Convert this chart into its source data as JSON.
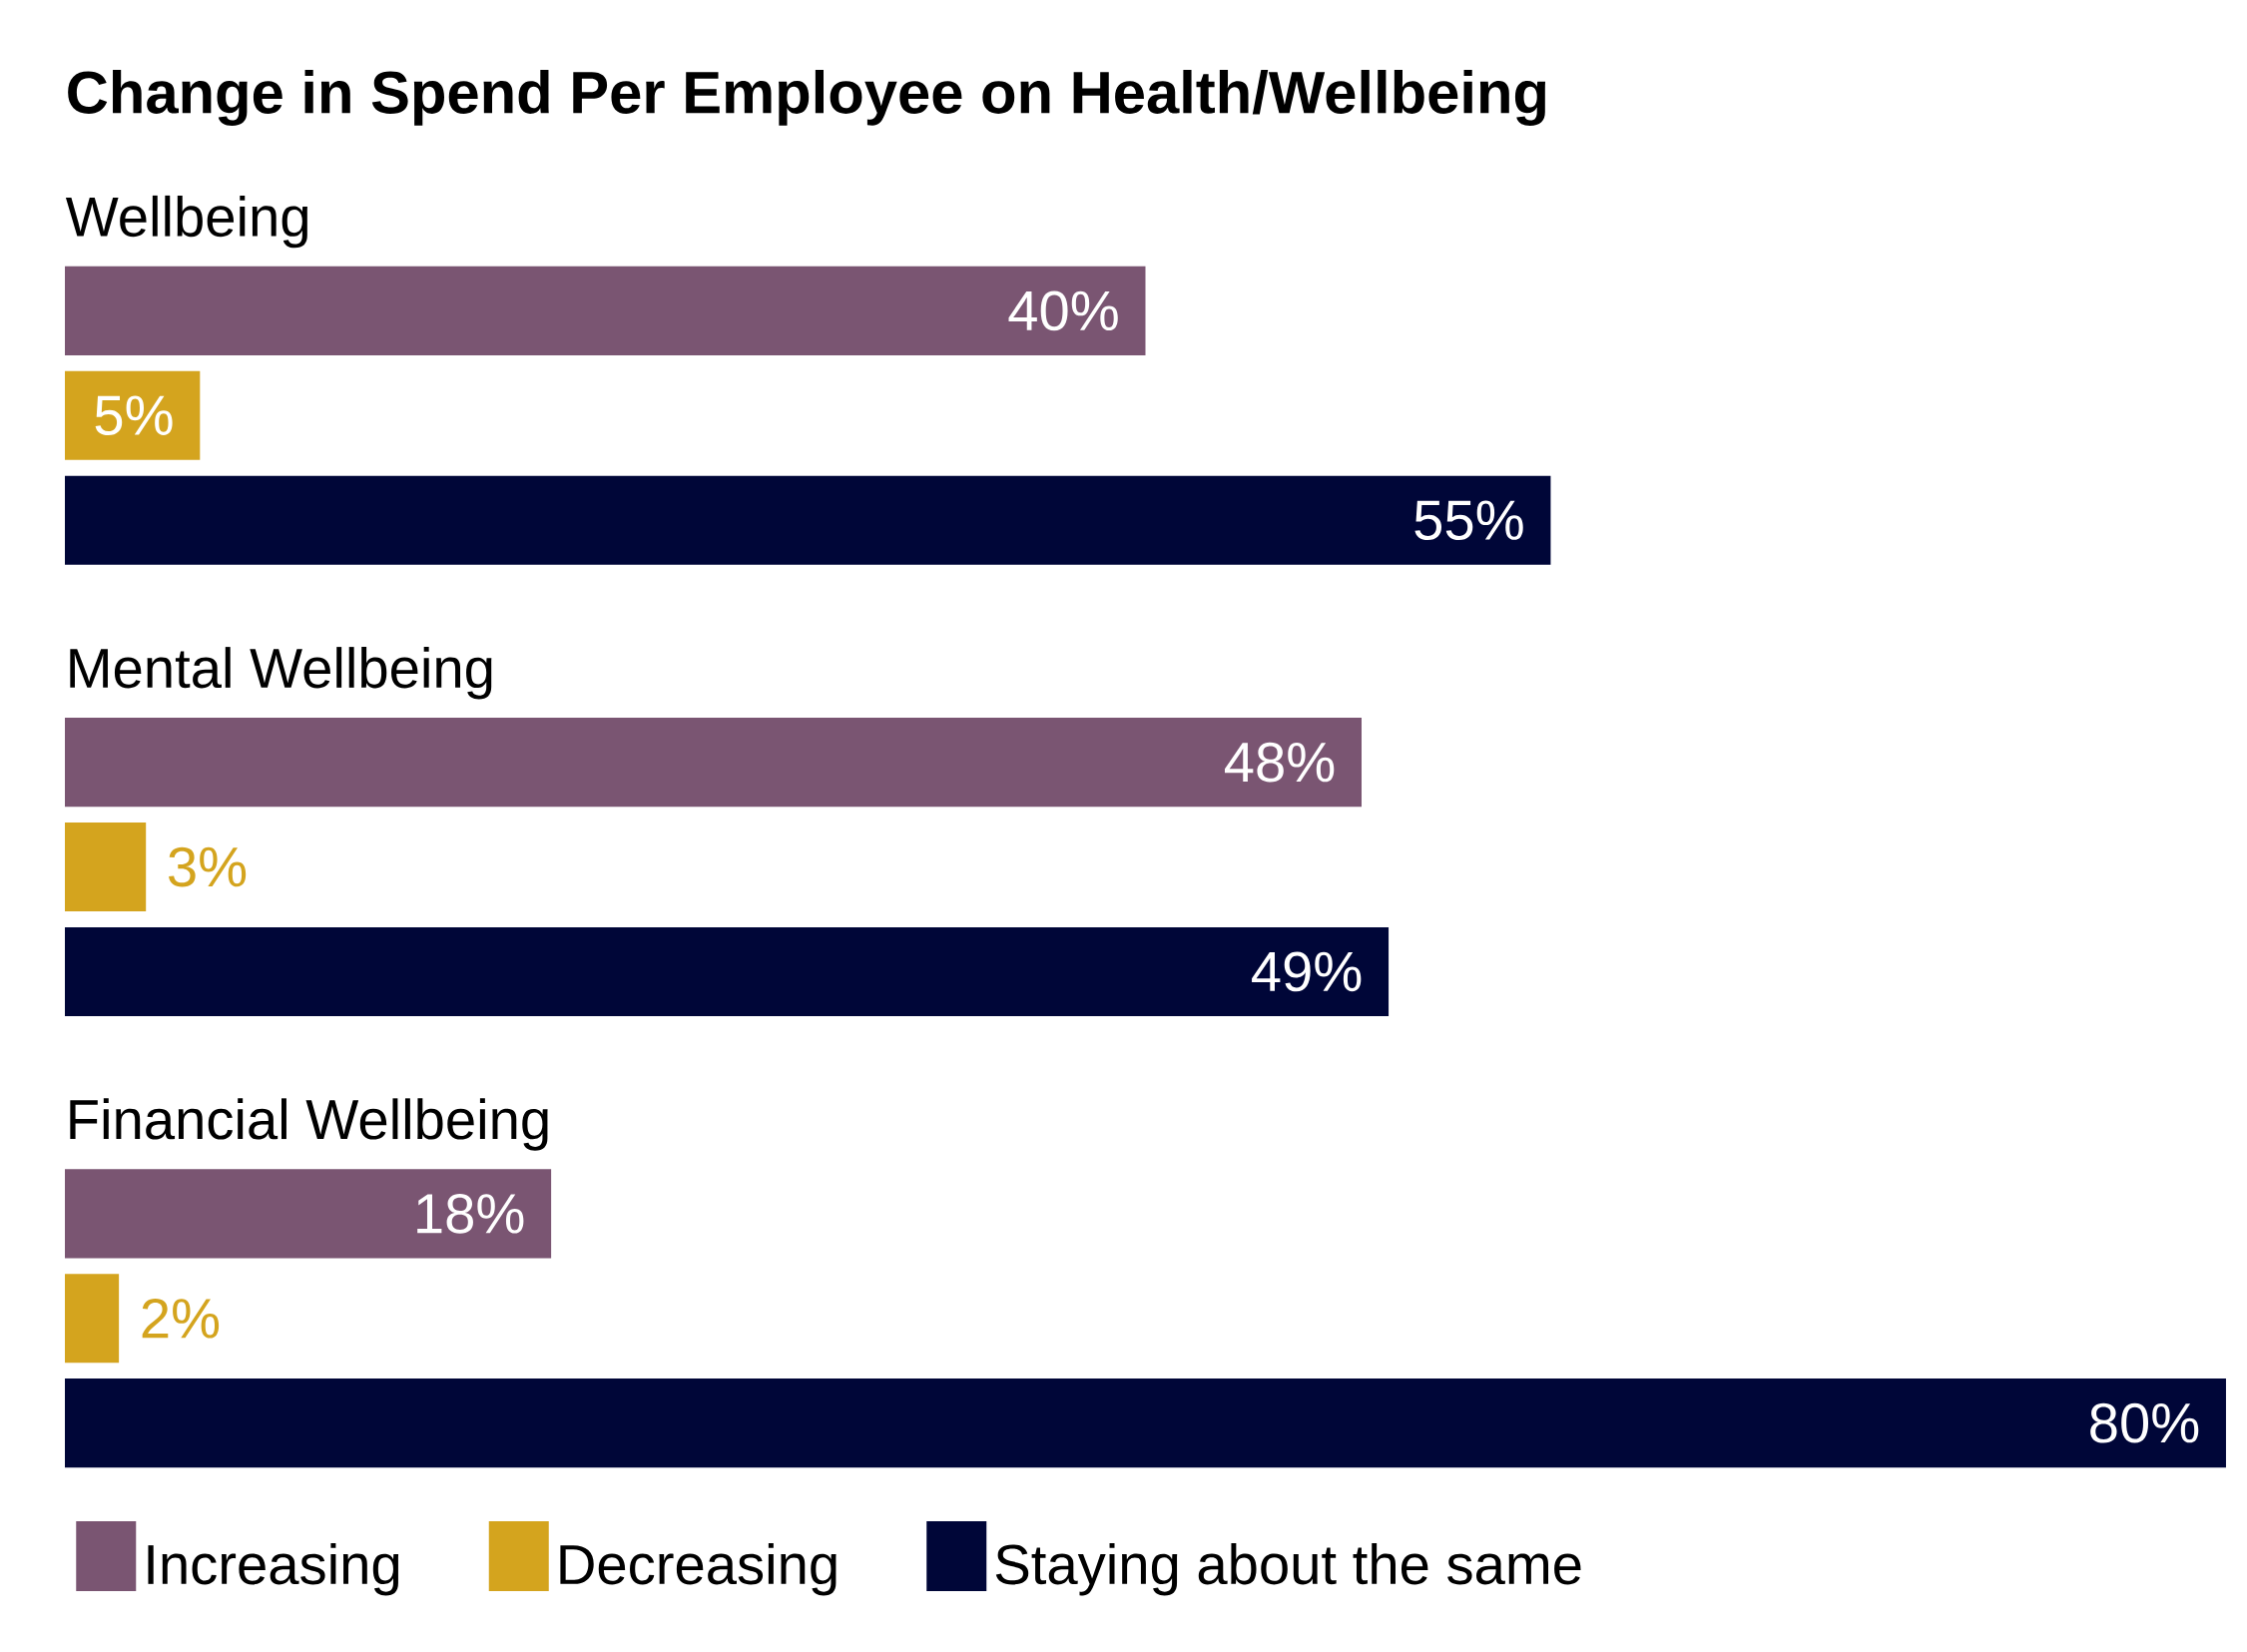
{
  "chart_data": {
    "type": "bar",
    "orientation": "horizontal",
    "title": "Change in Spend Per Employee on Health/Wellbeing",
    "categories": [
      "Wellbeing",
      "Mental Wellbeing",
      "Financial Wellbeing"
    ],
    "series": [
      {
        "name": "Increasing",
        "color": "#7a5572",
        "values": [
          40,
          48,
          18
        ],
        "value_labels": [
          "40%",
          "48%",
          "18%"
        ]
      },
      {
        "name": "Decreasing",
        "color": "#d4a41e",
        "values": [
          5,
          3,
          2
        ],
        "value_labels": [
          "5%",
          "3%",
          "2%"
        ]
      },
      {
        "name": "Staying about the same",
        "color": "#000638",
        "values": [
          55,
          49,
          80
        ],
        "value_labels": [
          "55%",
          "49%",
          "80%"
        ]
      }
    ],
    "data_labels": true,
    "legend": "bottom"
  }
}
